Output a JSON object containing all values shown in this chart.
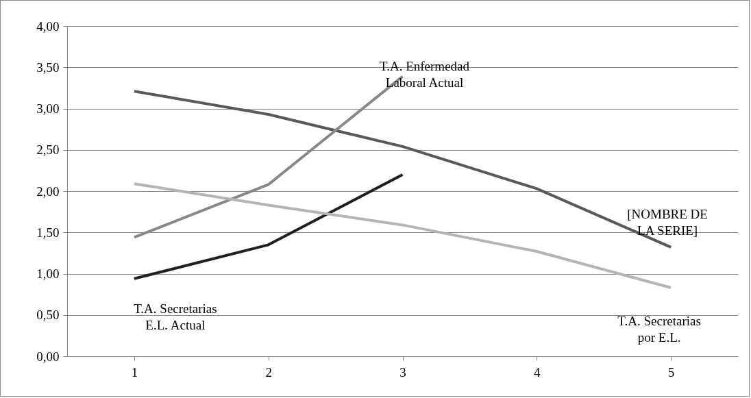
{
  "chart_data": {
    "type": "line",
    "categories": [
      "1",
      "2",
      "3",
      "4",
      "5"
    ],
    "series": [
      {
        "name": "[NOMBRE DE LA SERIE]",
        "color": "#595959",
        "values": [
          3.21,
          2.93,
          2.54,
          2.03,
          1.32
        ]
      },
      {
        "name": "T.A. Enfermedad Laboral Actual",
        "color": "#888888",
        "values": [
          1.44,
          2.08,
          3.39,
          null,
          null
        ]
      },
      {
        "name": "T.A. Secretarias E.L. Actual",
        "color": "#1f1f1f",
        "values": [
          0.94,
          1.35,
          2.2,
          null,
          null
        ]
      },
      {
        "name": "T.A. Secretarias por E.L.",
        "color": "#b4b4b4",
        "values": [
          2.09,
          1.83,
          1.59,
          1.27,
          0.83
        ]
      }
    ],
    "ylim": [
      0,
      4
    ],
    "yticks": [
      {
        "value": 0,
        "label": "0,00"
      },
      {
        "value": 0.5,
        "label": "0,50"
      },
      {
        "value": 1,
        "label": "1,00"
      },
      {
        "value": 1.5,
        "label": "1,50"
      },
      {
        "value": 2,
        "label": "2,00"
      },
      {
        "value": 2.5,
        "label": "2,50"
      },
      {
        "value": 3,
        "label": "3,00"
      },
      {
        "value": 3.5,
        "label": "3,50"
      },
      {
        "value": 4,
        "label": "4,00"
      }
    ],
    "grid": "y"
  }
}
